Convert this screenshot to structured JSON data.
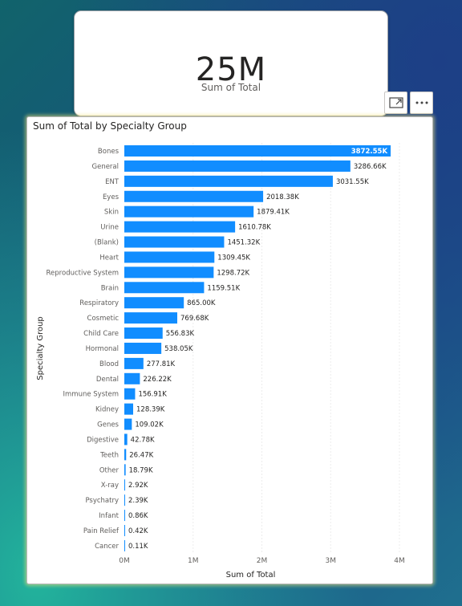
{
  "card": {
    "value": "25M",
    "label": "Sum of Total"
  },
  "toolbar": {
    "focus_icon": "focus-mode-icon",
    "more_icon": "more-options-icon"
  },
  "colors": {
    "bar": "#118dff",
    "text": "#252423",
    "axis_text": "#605e5c"
  },
  "chart_data": {
    "type": "bar",
    "orientation": "horizontal",
    "title": "Sum of Total by Specialty Group",
    "xlabel": "Sum of Total",
    "ylabel": "Specialty Group",
    "xlim": [
      0,
      4000000
    ],
    "x_ticks": [
      0,
      1000000,
      2000000,
      3000000,
      4000000
    ],
    "x_tick_labels": [
      "0M",
      "1M",
      "2M",
      "3M",
      "4M"
    ],
    "grid": true,
    "categories": [
      "Bones",
      "General",
      "ENT",
      "Eyes",
      "Skin",
      "Urine",
      "(Blank)",
      "Heart",
      "Reproductive System",
      "Brain",
      "Respiratory",
      "Cosmetic",
      "Child Care",
      "Hormonal",
      "Blood",
      "Dental",
      "Immune System",
      "Kidney",
      "Genes",
      "Digestive",
      "Teeth",
      "Other",
      "X-ray",
      "Psychatry",
      "Infant",
      "Pain Relief",
      "Cancer"
    ],
    "values": [
      3872550,
      3286660,
      3031550,
      2018380,
      1879410,
      1610780,
      1451320,
      1309450,
      1298720,
      1159510,
      865000,
      769680,
      556830,
      538050,
      277810,
      226220,
      156910,
      128390,
      109020,
      42780,
      26470,
      18790,
      2920,
      2390,
      860,
      420,
      110
    ],
    "data_labels": [
      "3872.55K",
      "3286.66K",
      "3031.55K",
      "2018.38K",
      "1879.41K",
      "1610.78K",
      "1451.32K",
      "1309.45K",
      "1298.72K",
      "1159.51K",
      "865.00K",
      "769.68K",
      "556.83K",
      "538.05K",
      "277.81K",
      "226.22K",
      "156.91K",
      "128.39K",
      "109.02K",
      "42.78K",
      "26.47K",
      "18.79K",
      "2.92K",
      "2.39K",
      "0.86K",
      "0.42K",
      "0.11K"
    ]
  }
}
